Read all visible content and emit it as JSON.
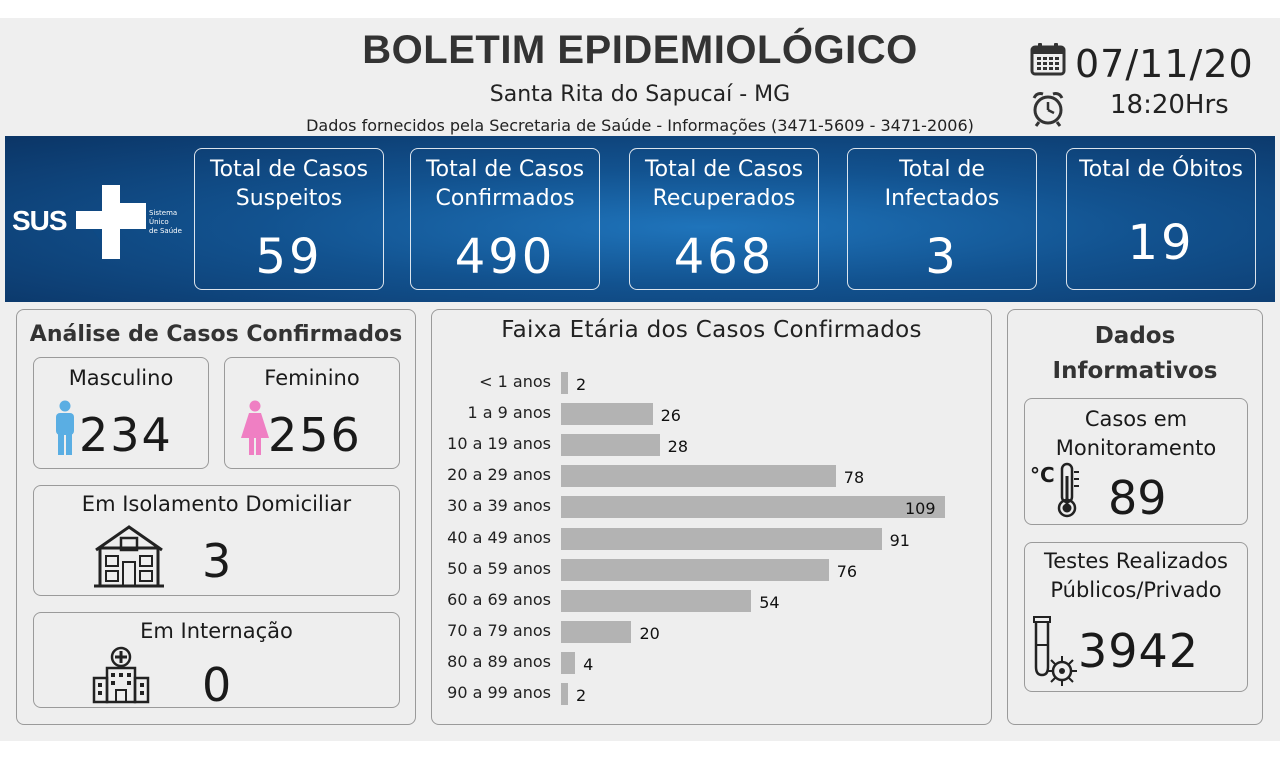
{
  "header": {
    "title": "BOLETIM EPIDEMIOLÓGICO",
    "city": "Santa Rita do Sapucaí - MG",
    "source": "Dados fornecidos pela Secretaria de Saúde - Informações (3471-5609 - 3471-2006)",
    "date": "07/11/20",
    "time": "18:20Hrs"
  },
  "logo": {
    "name": "SUS",
    "line1": "Sistema",
    "line2": "Único",
    "line3": "de Saúde"
  },
  "cards": [
    {
      "label_1": "Total de Casos",
      "label_2": "Suspeitos",
      "value": "59"
    },
    {
      "label_1": "Total de Casos",
      "label_2": "Confirmados",
      "value": "490"
    },
    {
      "label_1": "Total de Casos",
      "label_2": "Recuperados",
      "value": "468"
    },
    {
      "label_1": "Total de",
      "label_2": "Infectados",
      "value": "3"
    },
    {
      "label_1": "Total de Óbitos",
      "label_2": "",
      "value": "19"
    }
  ],
  "analysis": {
    "title": "Análise de Casos Confirmados",
    "male_label": "Masculino",
    "male_value": "234",
    "female_label": "Feminino",
    "female_value": "256",
    "isolation_label": "Em Isolamento Domiciliar",
    "isolation_value": "3",
    "hospital_label": "Em Internação",
    "hospital_value": "0"
  },
  "age_chart_title": "Faixa Etária dos Casos Confirmados",
  "chart_data": {
    "type": "bar",
    "orientation": "horizontal",
    "title": "Faixa Etária dos Casos Confirmados",
    "categories": [
      "< 1 anos",
      "1 a 9 anos",
      "10 a 19 anos",
      "20 a 29 anos",
      "30 a 39 anos",
      "40 a 49 anos",
      "50 a 59 anos",
      "60 a 69 anos",
      "70 a 79 anos",
      "80 a 89 anos",
      "90 a 99 anos"
    ],
    "values": [
      2,
      26,
      28,
      78,
      109,
      91,
      76,
      54,
      20,
      4,
      2
    ],
    "xlim": [
      0,
      109
    ],
    "grid": false,
    "colors": {
      "bar": "#b3b3b3"
    }
  },
  "info": {
    "title_1": "Dados",
    "title_2": "Informativos",
    "monitor_label_1": "Casos em",
    "monitor_label_2": "Monitoramento",
    "monitor_value": "89",
    "tests_label_1": "Testes Realizados",
    "tests_label_2": "Públicos/Privado",
    "tests_value": "3942",
    "temp_unit": "°C"
  },
  "colors": {
    "banner": "#12528f",
    "male_icon": "#5aaee3",
    "female_icon": "#ef7fc3",
    "panel_bg": "#efefef"
  },
  "icons": [
    "calendar-icon",
    "clock-icon",
    "sus-logo",
    "male-icon",
    "female-icon",
    "house-icon",
    "hospital-icon",
    "thermometer-icon",
    "test-tube-icon",
    "virus-icon"
  ]
}
